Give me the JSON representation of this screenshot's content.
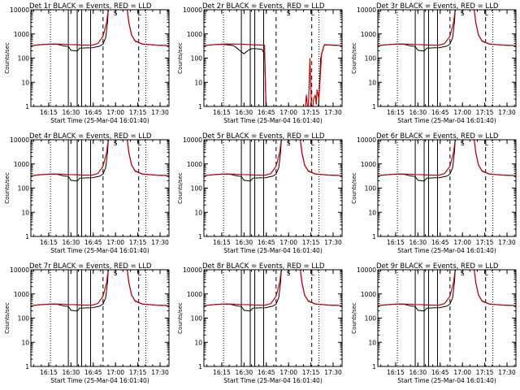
{
  "figure_title": "RHESSI detector rate plots",
  "colors": {
    "events": "#000000",
    "lld": "#cc0000",
    "background": "#ffffff"
  },
  "chart_data": [
    {
      "type": "line",
      "panel": "det-1r",
      "title": "Det 1r BLACK = Events, RED = LLD",
      "xlabel": "Start Time (25-Mar-04 16:01:40)",
      "ylabel": "Counts/sec",
      "yscale": "log",
      "ylim": [
        1,
        10000
      ],
      "xlim": [
        16.05,
        17.6
      ],
      "y_ticks": [
        "1",
        "10",
        "100",
        "1000",
        "10000"
      ],
      "x_ticks": [
        "16:15",
        "16:30",
        "16:45",
        "17:00",
        "17:15",
        "17:30"
      ],
      "x_tick_values": [
        16.25,
        16.5,
        16.75,
        17.0,
        17.25,
        17.5
      ],
      "series": [
        {
          "name": "Events",
          "color": "#000000"
        },
        {
          "name": "LLD",
          "color": "#cc0000"
        }
      ],
      "markers": {
        "dotted": [
          16.27,
          17.34
        ],
        "solid": [
          16.47,
          16.57,
          16.62,
          16.72
        ],
        "dashed": [
          16.86,
          17.26
        ],
        "flag_labels": [
          {
            "x": 17.0,
            "text": "S"
          },
          {
            "x": 17.27,
            "text": "L"
          }
        ]
      }
    },
    {
      "type": "line",
      "panel": "det-2r",
      "title": "Det 2r BLACK = Events, RED = LLD",
      "xlabel": "Start Time (25-Mar-04 16:01:40)",
      "ylabel": "Counts/sec",
      "yscale": "log",
      "ylim": [
        1,
        10000
      ],
      "xlim": [
        16.05,
        17.6
      ],
      "y_ticks": [
        "1",
        "10",
        "100",
        "1000",
        "10000"
      ],
      "x_ticks": [
        "16:15",
        "16:30",
        "16:45",
        "17:00",
        "17:15",
        "17:30"
      ],
      "x_tick_values": [
        16.25,
        16.5,
        16.75,
        17.0,
        17.25,
        17.5
      ],
      "series": [
        {
          "name": "Events",
          "color": "#000000"
        },
        {
          "name": "LLD",
          "color": "#cc0000"
        }
      ],
      "markers": {
        "dotted": [
          16.27,
          17.34
        ],
        "solid": [
          16.47,
          16.57,
          16.62,
          16.72
        ],
        "dashed": [
          16.86,
          17.26
        ],
        "flag_labels": [
          {
            "x": 17.0,
            "text": "S"
          },
          {
            "x": 17.27,
            "text": "L"
          }
        ]
      }
    },
    {
      "type": "line",
      "panel": "det-3r",
      "title": "Det 3r BLACK = Events, RED = LLD",
      "xlabel": "Start Time (25-Mar-04 16:01:40)",
      "ylabel": "Counts/sec",
      "yscale": "log",
      "ylim": [
        1,
        10000
      ],
      "xlim": [
        16.05,
        17.6
      ],
      "y_ticks": [
        "1",
        "10",
        "100",
        "1000",
        "10000"
      ],
      "x_ticks": [
        "16:15",
        "16:30",
        "16:45",
        "17:00",
        "17:15",
        "17:30"
      ],
      "x_tick_values": [
        16.25,
        16.5,
        16.75,
        17.0,
        17.25,
        17.5
      ],
      "series": [
        {
          "name": "Events",
          "color": "#000000"
        },
        {
          "name": "LLD",
          "color": "#cc0000"
        }
      ],
      "markers": {
        "dotted": [
          16.27,
          17.34
        ],
        "solid": [
          16.47,
          16.57,
          16.62,
          16.72
        ],
        "dashed": [
          16.86,
          17.26
        ],
        "flag_labels": [
          {
            "x": 17.0,
            "text": "S"
          },
          {
            "x": 17.27,
            "text": "L"
          }
        ]
      }
    },
    {
      "type": "line",
      "panel": "det-4r",
      "title": "Det 4r BLACK = Events, RED = LLD",
      "xlabel": "Start Time (25-Mar-04 16:01:40)",
      "ylabel": "Counts/sec",
      "yscale": "log",
      "ylim": [
        1,
        10000
      ],
      "xlim": [
        16.05,
        17.6
      ],
      "y_ticks": [
        "1",
        "10",
        "100",
        "1000",
        "10000"
      ],
      "x_ticks": [
        "16:15",
        "16:30",
        "16:45",
        "17:00",
        "17:15",
        "17:30"
      ],
      "x_tick_values": [
        16.25,
        16.5,
        16.75,
        17.0,
        17.25,
        17.5
      ],
      "series": [
        {
          "name": "Events",
          "color": "#000000"
        },
        {
          "name": "LLD",
          "color": "#cc0000"
        }
      ],
      "markers": {
        "dotted": [
          16.27,
          17.34
        ],
        "solid": [
          16.47,
          16.57,
          16.62,
          16.72
        ],
        "dashed": [
          16.86,
          17.26
        ],
        "flag_labels": [
          {
            "x": 17.0,
            "text": "S"
          },
          {
            "x": 17.27,
            "text": "L"
          }
        ]
      }
    },
    {
      "type": "line",
      "panel": "det-5r",
      "title": "Det 5r BLACK = Events, RED = LLD",
      "xlabel": "Start Time (25-Mar-04 16:01:40)",
      "ylabel": "Counts/sec",
      "yscale": "log",
      "ylim": [
        1,
        10000
      ],
      "xlim": [
        16.05,
        17.6
      ],
      "y_ticks": [
        "1",
        "10",
        "100",
        "1000",
        "10000"
      ],
      "x_ticks": [
        "16:15",
        "16:30",
        "16:45",
        "17:00",
        "17:15",
        "17:30"
      ],
      "x_tick_values": [
        16.25,
        16.5,
        16.75,
        17.0,
        17.25,
        17.5
      ],
      "series": [
        {
          "name": "Events",
          "color": "#000000"
        },
        {
          "name": "LLD",
          "color": "#cc0000"
        }
      ],
      "markers": {
        "dotted": [
          16.27,
          17.34
        ],
        "solid": [
          16.47,
          16.57,
          16.62,
          16.72
        ],
        "dashed": [
          16.86,
          17.26
        ],
        "flag_labels": [
          {
            "x": 17.0,
            "text": "S"
          },
          {
            "x": 17.27,
            "text": "L"
          }
        ]
      }
    },
    {
      "type": "line",
      "panel": "det-6r",
      "title": "Det 6r BLACK = Events, RED = LLD",
      "xlabel": "Start Time (25-Mar-04 16:01:40)",
      "ylabel": "Counts/sec",
      "yscale": "log",
      "ylim": [
        1,
        10000
      ],
      "xlim": [
        16.05,
        17.6
      ],
      "y_ticks": [
        "1",
        "10",
        "100",
        "1000",
        "10000"
      ],
      "x_ticks": [
        "16:15",
        "16:30",
        "16:45",
        "17:00",
        "17:15",
        "17:30"
      ],
      "x_tick_values": [
        16.25,
        16.5,
        16.75,
        17.0,
        17.25,
        17.5
      ],
      "series": [
        {
          "name": "Events",
          "color": "#000000"
        },
        {
          "name": "LLD",
          "color": "#cc0000"
        }
      ],
      "markers": {
        "dotted": [
          16.27,
          17.34
        ],
        "solid": [
          16.47,
          16.57,
          16.62,
          16.72
        ],
        "dashed": [
          16.86,
          17.26
        ],
        "flag_labels": [
          {
            "x": 17.0,
            "text": "S"
          },
          {
            "x": 17.27,
            "text": "L"
          }
        ]
      }
    },
    {
      "type": "line",
      "panel": "det-7r",
      "title": "Det 7r BLACK = Events, RED = LLD",
      "xlabel": "Start Time (25-Mar-04 16:01:40)",
      "ylabel": "Counts/sec",
      "yscale": "log",
      "ylim": [
        1,
        10000
      ],
      "xlim": [
        16.05,
        17.6
      ],
      "y_ticks": [
        "1",
        "10",
        "100",
        "1000",
        "10000"
      ],
      "x_ticks": [
        "16:15",
        "16:30",
        "16:45",
        "17:00",
        "17:15",
        "17:30"
      ],
      "x_tick_values": [
        16.25,
        16.5,
        16.75,
        17.0,
        17.25,
        17.5
      ],
      "series": [
        {
          "name": "Events",
          "color": "#000000"
        },
        {
          "name": "LLD",
          "color": "#cc0000"
        }
      ],
      "markers": {
        "dotted": [
          16.27,
          17.34
        ],
        "solid": [
          16.47,
          16.57,
          16.62,
          16.72
        ],
        "dashed": [
          16.86,
          17.26
        ],
        "flag_labels": [
          {
            "x": 17.0,
            "text": "S"
          },
          {
            "x": 17.27,
            "text": "L"
          }
        ]
      }
    },
    {
      "type": "line",
      "panel": "det-8r",
      "title": "Det 8r BLACK = Events, RED = LLD",
      "xlabel": "Start Time (25-Mar-04 16:01:40)",
      "ylabel": "Counts/sec",
      "yscale": "log",
      "ylim": [
        1,
        10000
      ],
      "xlim": [
        16.05,
        17.6
      ],
      "y_ticks": [
        "1",
        "10",
        "100",
        "1000",
        "10000"
      ],
      "x_ticks": [
        "16:15",
        "16:30",
        "16:45",
        "17:00",
        "17:15",
        "17:30"
      ],
      "x_tick_values": [
        16.25,
        16.5,
        16.75,
        17.0,
        17.25,
        17.5
      ],
      "series": [
        {
          "name": "Events",
          "color": "#000000"
        },
        {
          "name": "LLD",
          "color": "#cc0000"
        }
      ],
      "markers": {
        "dotted": [
          16.27,
          17.34
        ],
        "solid": [
          16.47,
          16.57,
          16.62,
          16.72
        ],
        "dashed": [
          16.86,
          17.26
        ],
        "flag_labels": [
          {
            "x": 17.0,
            "text": "S"
          },
          {
            "x": 17.27,
            "text": "L"
          }
        ]
      }
    },
    {
      "type": "line",
      "panel": "det-9r",
      "title": "Det 9r BLACK = Events, RED = LLD",
      "xlabel": "Start Time (25-Mar-04 16:01:40)",
      "ylabel": "Counts/sec",
      "yscale": "log",
      "ylim": [
        1,
        10000
      ],
      "xlim": [
        16.05,
        17.6
      ],
      "y_ticks": [
        "1",
        "10",
        "100",
        "1000",
        "10000"
      ],
      "x_ticks": [
        "16:15",
        "16:30",
        "16:45",
        "17:00",
        "17:15",
        "17:30"
      ],
      "x_tick_values": [
        16.25,
        16.5,
        16.75,
        17.0,
        17.25,
        17.5
      ],
      "series": [
        {
          "name": "Events",
          "color": "#000000"
        },
        {
          "name": "LLD",
          "color": "#cc0000"
        }
      ],
      "markers": {
        "dotted": [
          16.27,
          17.34
        ],
        "solid": [
          16.47,
          16.57,
          16.62,
          16.72
        ],
        "dashed": [
          16.86,
          17.26
        ],
        "flag_labels": [
          {
            "x": 17.0,
            "text": "S"
          },
          {
            "x": 17.27,
            "text": "L"
          }
        ]
      }
    }
  ],
  "curves": {
    "events_common": [
      [
        16.05,
        330
      ],
      [
        16.2,
        370
      ],
      [
        16.27,
        380
      ],
      [
        16.35,
        370
      ],
      [
        16.42,
        320
      ],
      [
        16.47,
        300
      ],
      [
        16.5,
        210
      ],
      [
        16.57,
        195
      ],
      [
        16.6,
        260
      ],
      [
        16.68,
        265
      ],
      [
        16.74,
        270
      ],
      [
        16.78,
        290
      ],
      [
        16.82,
        310
      ],
      [
        16.86,
        380
      ],
      [
        16.89,
        700
      ],
      [
        16.91,
        3000
      ],
      [
        16.92,
        11000
      ],
      [
        17.13,
        11000
      ],
      [
        17.15,
        3000
      ],
      [
        17.18,
        900
      ],
      [
        17.22,
        500
      ],
      [
        17.3,
        380
      ],
      [
        17.45,
        345
      ],
      [
        17.6,
        330
      ]
    ],
    "lld_common": [
      [
        16.05,
        330
      ],
      [
        16.2,
        370
      ],
      [
        16.3,
        385
      ],
      [
        16.4,
        380
      ],
      [
        16.47,
        365
      ],
      [
        16.55,
        360
      ],
      [
        16.62,
        345
      ],
      [
        16.7,
        340
      ],
      [
        16.74,
        345
      ],
      [
        16.8,
        400
      ],
      [
        16.86,
        800
      ],
      [
        16.9,
        3000
      ],
      [
        16.92,
        11000
      ],
      [
        17.13,
        11000
      ],
      [
        17.15,
        3000
      ],
      [
        17.18,
        900
      ],
      [
        17.22,
        520
      ],
      [
        17.3,
        385
      ],
      [
        17.45,
        345
      ],
      [
        17.6,
        330
      ]
    ],
    "events_det2": [
      [
        16.05,
        330
      ],
      [
        16.2,
        370
      ],
      [
        16.3,
        360
      ],
      [
        16.38,
        330
      ],
      [
        16.42,
        260
      ],
      [
        16.47,
        180
      ],
      [
        16.5,
        150
      ],
      [
        16.52,
        175
      ],
      [
        16.57,
        240
      ],
      [
        16.62,
        250
      ],
      [
        16.7,
        230
      ],
      [
        16.73,
        150
      ],
      [
        16.75,
        0.1
      ],
      [
        17.33,
        0.1
      ],
      [
        17.36,
        100
      ],
      [
        17.4,
        350
      ],
      [
        17.5,
        340
      ],
      [
        17.6,
        330
      ]
    ],
    "lld_det2": [
      [
        16.05,
        330
      ],
      [
        16.2,
        370
      ],
      [
        16.3,
        385
      ],
      [
        16.45,
        380
      ],
      [
        16.6,
        355
      ],
      [
        16.7,
        345
      ],
      [
        16.73,
        340
      ],
      [
        16.75,
        0.1
      ],
      [
        17.18,
        0.1
      ],
      [
        17.2,
        3
      ],
      [
        17.22,
        0.5
      ],
      [
        17.24,
        100
      ],
      [
        17.26,
        0.2
      ],
      [
        17.28,
        2
      ],
      [
        17.3,
        3
      ],
      [
        17.31,
        1.2
      ],
      [
        17.32,
        5
      ],
      [
        17.34,
        2
      ],
      [
        17.37,
        150
      ],
      [
        17.4,
        360
      ],
      [
        17.5,
        345
      ],
      [
        17.6,
        330
      ]
    ]
  }
}
